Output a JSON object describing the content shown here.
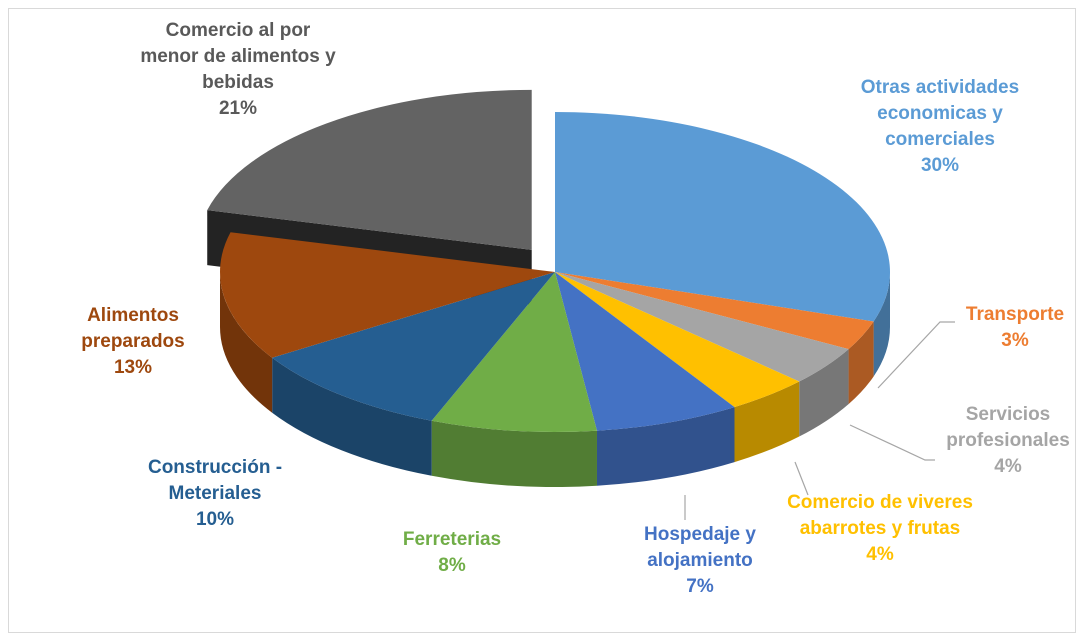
{
  "chart_data": {
    "type": "pie",
    "categories": [
      "Otras actividades economicas y comerciales",
      "Transporte",
      "Servicios profesionales",
      "Comercio de viveres abarrotes y frutas",
      "Hospedaje y alojamiento",
      "Ferreterias",
      "Construcción - Meteriales",
      "Alimentos preparados",
      "Comercio al por menor de alimentos y bebidas"
    ],
    "values": [
      30,
      3,
      4,
      4,
      7,
      8,
      10,
      13,
      21
    ],
    "value_labels": [
      "30%",
      "3%",
      "4%",
      "4%",
      "7%",
      "8%",
      "10%",
      "13%",
      "21%"
    ],
    "colors": [
      "#5b9bd5",
      "#ed7d31",
      "#a5a5a5",
      "#ffc000",
      "#4472c4",
      "#70ad47",
      "#255e91",
      "#9e480e",
      "#636363"
    ],
    "label_colors": [
      "#5b9bd5",
      "#ed7d31",
      "#a5a5a5",
      "#ffc000",
      "#4472c4",
      "#70ad47",
      "#255e91",
      "#9e480e",
      "#595959"
    ],
    "exploded": [
      8
    ]
  }
}
